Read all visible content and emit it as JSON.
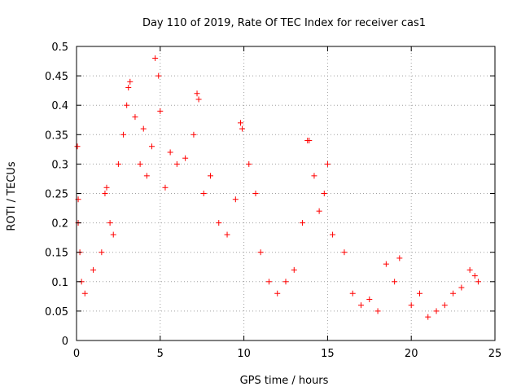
{
  "chart_data": {
    "type": "scatter",
    "title": "Day 110 of 2019, Rate Of TEC Index for receiver cas1",
    "xlabel": "GPS time / hours",
    "ylabel": "ROTI / TECUs",
    "xlim": [
      0,
      25
    ],
    "ylim": [
      0,
      0.5
    ],
    "xticks": [
      "0",
      "5",
      "10",
      "15",
      "20",
      "25"
    ],
    "yticks": [
      "0",
      "0.05",
      "0.1",
      "0.15",
      "0.2",
      "0.25",
      "0.3",
      "0.35",
      "0.4",
      "0.45",
      "0.5"
    ],
    "grid": true,
    "marker": "+",
    "series": [
      {
        "name": "ROTI",
        "color": "#ff0000",
        "points": [
          [
            0.05,
            0.33
          ],
          [
            0.1,
            0.24
          ],
          [
            0.1,
            0.2
          ],
          [
            0.2,
            0.15
          ],
          [
            0.3,
            0.1
          ],
          [
            0.5,
            0.08
          ],
          [
            1.0,
            0.12
          ],
          [
            1.5,
            0.15
          ],
          [
            1.7,
            0.25
          ],
          [
            1.8,
            0.26
          ],
          [
            2.0,
            0.2
          ],
          [
            2.2,
            0.18
          ],
          [
            2.5,
            0.3
          ],
          [
            2.8,
            0.35
          ],
          [
            3.0,
            0.4
          ],
          [
            3.1,
            0.43
          ],
          [
            3.2,
            0.44
          ],
          [
            3.5,
            0.38
          ],
          [
            3.8,
            0.3
          ],
          [
            4.0,
            0.36
          ],
          [
            4.2,
            0.28
          ],
          [
            4.5,
            0.33
          ],
          [
            4.7,
            0.48
          ],
          [
            4.9,
            0.45
          ],
          [
            5.0,
            0.39
          ],
          [
            5.3,
            0.26
          ],
          [
            5.6,
            0.32
          ],
          [
            6.0,
            0.3
          ],
          [
            6.5,
            0.31
          ],
          [
            7.0,
            0.35
          ],
          [
            7.2,
            0.42
          ],
          [
            7.3,
            0.41
          ],
          [
            7.6,
            0.25
          ],
          [
            8.0,
            0.28
          ],
          [
            8.5,
            0.2
          ],
          [
            9.0,
            0.18
          ],
          [
            9.5,
            0.24
          ],
          [
            9.8,
            0.37
          ],
          [
            9.9,
            0.36
          ],
          [
            10.3,
            0.3
          ],
          [
            10.7,
            0.25
          ],
          [
            11.0,
            0.15
          ],
          [
            11.5,
            0.1
          ],
          [
            12.0,
            0.08
          ],
          [
            12.5,
            0.1
          ],
          [
            13.0,
            0.12
          ],
          [
            13.5,
            0.2
          ],
          [
            13.8,
            0.34
          ],
          [
            13.9,
            0.34
          ],
          [
            14.2,
            0.28
          ],
          [
            14.5,
            0.22
          ],
          [
            14.8,
            0.25
          ],
          [
            15.0,
            0.3
          ],
          [
            15.3,
            0.18
          ],
          [
            16.0,
            0.15
          ],
          [
            16.5,
            0.08
          ],
          [
            17.0,
            0.06
          ],
          [
            17.5,
            0.07
          ],
          [
            18.0,
            0.05
          ],
          [
            18.5,
            0.13
          ],
          [
            19.0,
            0.1
          ],
          [
            19.3,
            0.14
          ],
          [
            20.0,
            0.06
          ],
          [
            20.5,
            0.08
          ],
          [
            21.0,
            0.04
          ],
          [
            21.5,
            0.05
          ],
          [
            22.0,
            0.06
          ],
          [
            22.5,
            0.08
          ],
          [
            23.0,
            0.09
          ],
          [
            23.5,
            0.12
          ],
          [
            23.8,
            0.11
          ],
          [
            24.0,
            0.1
          ]
        ]
      }
    ]
  }
}
